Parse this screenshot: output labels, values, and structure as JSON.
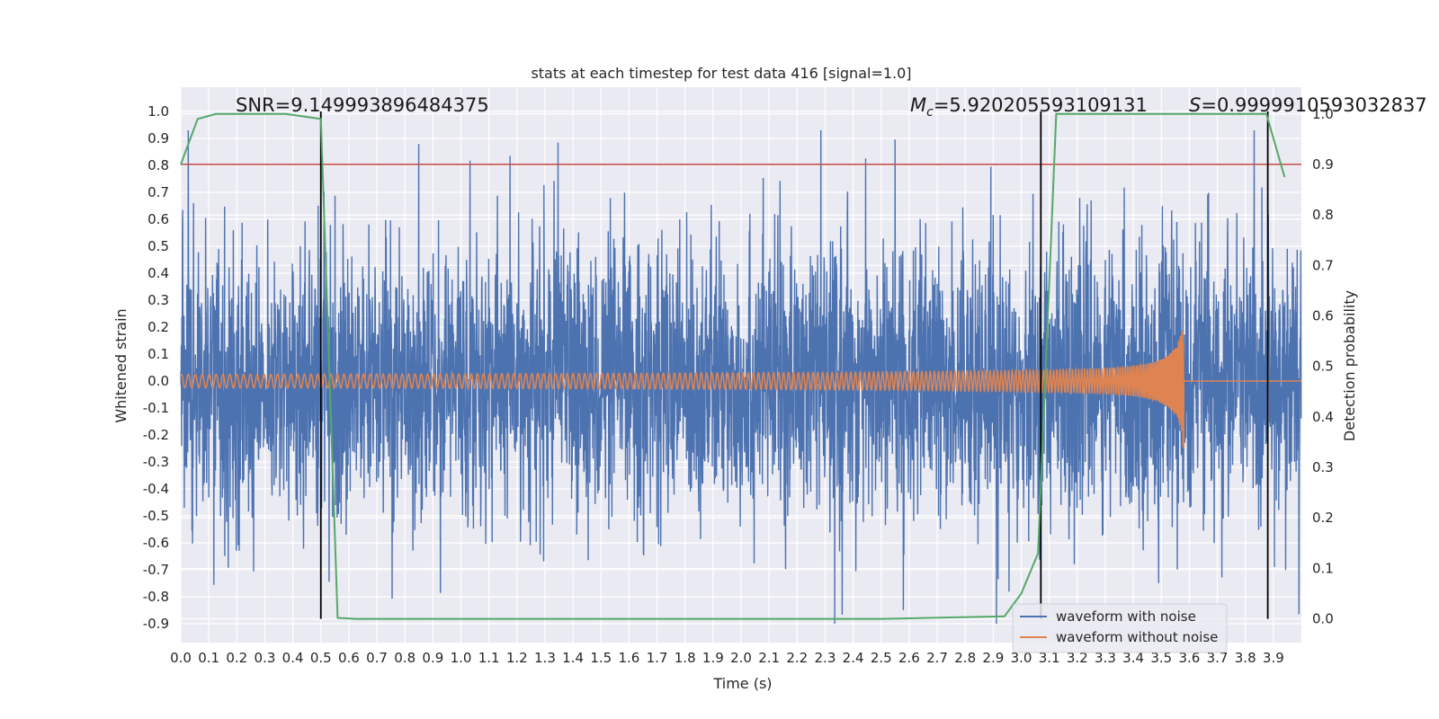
{
  "chart_data": {
    "type": "line",
    "title": "stats at each timestep for test data 416 [signal=1.0]",
    "xlabel": "Time (s)",
    "ylabel": "Whitened strain",
    "y2label": "Detection probability",
    "xlim": [
      0.0,
      4.0
    ],
    "ylim": [
      -0.97,
      1.09
    ],
    "y2lim": [
      -0.047,
      1.053
    ],
    "x_ticks": [
      "0.0",
      "0.1",
      "0.2",
      "0.3",
      "0.4",
      "0.5",
      "0.6",
      "0.7",
      "0.8",
      "0.9",
      "1.0",
      "1.1",
      "1.2",
      "1.3",
      "1.4",
      "1.5",
      "1.6",
      "1.7",
      "1.8",
      "1.9",
      "2.0",
      "2.1",
      "2.2",
      "2.3",
      "2.4",
      "2.5",
      "2.6",
      "2.7",
      "2.8",
      "2.9",
      "3.0",
      "3.1",
      "3.2",
      "3.3",
      "3.4",
      "3.5",
      "3.6",
      "3.7",
      "3.8",
      "3.9"
    ],
    "y_ticks": [
      "1.0",
      "0.9",
      "0.8",
      "0.7",
      "0.6",
      "0.5",
      "0.4",
      "0.3",
      "0.2",
      "0.1",
      "0.0",
      "-0.1",
      "-0.2",
      "-0.3",
      "-0.4",
      "-0.5",
      "-0.6",
      "-0.7",
      "-0.8",
      "-0.9"
    ],
    "y2_ticks": [
      "1.0",
      "0.9",
      "0.8",
      "0.7",
      "0.6",
      "0.5",
      "0.4",
      "0.3",
      "0.2",
      "0.1",
      "0.0"
    ],
    "grid": true,
    "legend_position": "lower-right",
    "annotations": {
      "snr": "SNR=9.149993896484375",
      "mc_symbol": "M",
      "mc_sub": "c",
      "mc_value": "=5.920205593109131",
      "s_symbol": "S",
      "s_value": "=0.9999910593032837"
    },
    "threshold": {
      "value": 0.9,
      "axis": "y2",
      "color": "#c44e52"
    },
    "vertical_lines": [
      0.5,
      3.07,
      3.88
    ],
    "series": [
      {
        "name": "waveform with noise",
        "color": "#4c72b0",
        "axis": "y",
        "kind": "noise",
        "x_range": [
          0.0,
          4.0
        ],
        "envelope": [
          -0.9,
          0.93
        ],
        "noise_sigma": 0.25
      },
      {
        "name": "waveform without noise",
        "color": "#dd8452",
        "axis": "y",
        "kind": "chirp",
        "x_range": [
          0.0,
          4.0
        ],
        "merger_time": 3.58,
        "amplitude_start": 0.025,
        "amplitude_peak": 0.33
      },
      {
        "name": "detection probability",
        "color": "#55a868",
        "axis": "y2",
        "x": [
          0.0,
          0.06,
          0.125,
          0.19,
          0.25,
          0.31,
          0.375,
          0.44,
          0.5,
          0.56,
          0.625,
          0.69,
          0.75,
          0.81,
          0.875,
          0.94,
          1.0,
          1.5,
          2.0,
          2.5,
          2.94,
          3.0,
          3.06,
          3.125,
          3.19,
          3.25,
          3.5,
          3.75,
          3.81,
          3.875,
          3.94
        ],
        "values": [
          0.9,
          0.99,
          1.0,
          1.0,
          1.0,
          1.0,
          1.0,
          0.995,
          0.99,
          0.002,
          0.0,
          0.0,
          0.0,
          0.0,
          0.0,
          0.0,
          0.0,
          0.0,
          0.0,
          0.0,
          0.005,
          0.05,
          0.13,
          1.0,
          1.0,
          1.0,
          1.0,
          1.0,
          1.0,
          1.0,
          0.875
        ]
      }
    ]
  }
}
